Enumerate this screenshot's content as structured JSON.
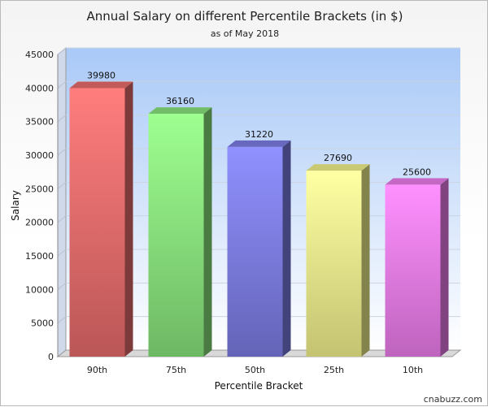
{
  "chart_data": {
    "type": "bar",
    "title": "Annual Salary on different Percentile Brackets (in $)",
    "subtitle": "as of May 2018",
    "xlabel": "Percentile Bracket",
    "ylabel": "Salary",
    "categories": [
      "90th",
      "75th",
      "50th",
      "25th",
      "10th"
    ],
    "values": [
      39980,
      36160,
      31220,
      27690,
      25600
    ],
    "data_labels": [
      "39980",
      "36160",
      "31220",
      "27690",
      "25600"
    ],
    "ylim": [
      0,
      45000
    ],
    "yticks": [
      0,
      5000,
      10000,
      15000,
      20000,
      25000,
      30000,
      35000,
      40000,
      45000
    ],
    "grid": true,
    "legend": "none",
    "colors": [
      "#e46a6a",
      "#86e07a",
      "#7a7ae0",
      "#eeee8a",
      "#e87ae8"
    ],
    "credit": "cnabuzz.com"
  }
}
